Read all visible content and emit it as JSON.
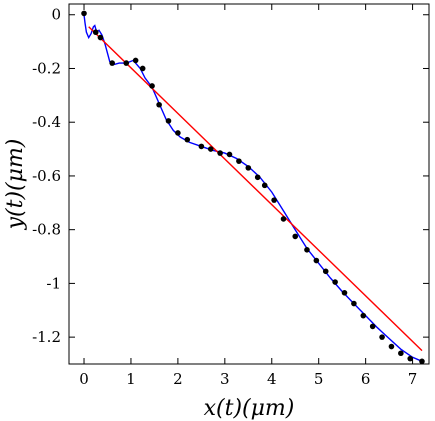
{
  "chart_data": {
    "type": "line",
    "title": "",
    "xlabel": "x(t)(μm)",
    "ylabel": "y(t)(μm)",
    "xlim": [
      -0.32,
      7.35
    ],
    "ylim": [
      -1.3,
      0.04
    ],
    "xticks": [
      0,
      1,
      2,
      3,
      4,
      5,
      6,
      7
    ],
    "xtick_labels": [
      "0",
      "1",
      "2",
      "3",
      "4",
      "5",
      "6",
      "7"
    ],
    "yticks": [
      0,
      -0.2,
      -0.4,
      -0.6,
      -0.8,
      -1,
      -1.2
    ],
    "ytick_labels": [
      "0",
      "-0.2",
      "-0.4",
      "-0.6",
      "-0.8",
      "-1",
      "-1.2"
    ],
    "grid": false,
    "legend": "none",
    "series": [
      {
        "color": "#0000ff",
        "style": "line",
        "x": [
          0.0,
          0.02,
          0.05,
          0.1,
          0.15,
          0.2,
          0.23,
          0.27,
          0.32,
          0.38,
          0.45,
          0.55,
          0.65,
          0.75,
          0.9,
          1.05,
          1.2,
          1.3,
          1.45,
          1.6,
          1.75,
          1.9,
          2.05,
          2.25,
          2.5,
          2.75,
          3.0,
          3.25,
          3.5,
          3.75,
          4.0,
          4.25,
          4.5,
          4.75,
          5.0,
          5.25,
          5.5,
          5.75,
          6.0,
          6.25,
          6.5,
          6.75,
          7.0,
          7.2
        ],
        "y": [
          0.0,
          -0.03,
          -0.065,
          -0.085,
          -0.07,
          -0.045,
          -0.04,
          -0.065,
          -0.058,
          -0.075,
          -0.11,
          -0.175,
          -0.185,
          -0.18,
          -0.18,
          -0.17,
          -0.2,
          -0.235,
          -0.27,
          -0.33,
          -0.39,
          -0.43,
          -0.455,
          -0.475,
          -0.49,
          -0.505,
          -0.515,
          -0.535,
          -0.565,
          -0.605,
          -0.66,
          -0.73,
          -0.8,
          -0.87,
          -0.925,
          -0.98,
          -1.03,
          -1.075,
          -1.12,
          -1.165,
          -1.205,
          -1.245,
          -1.275,
          -1.29
        ]
      },
      {
        "color": "#000000",
        "style": "markers",
        "x": [
          0.0,
          0.25,
          0.35,
          0.6,
          0.9,
          1.1,
          1.25,
          1.45,
          1.6,
          1.8,
          2.0,
          2.2,
          2.5,
          2.7,
          2.9,
          3.1,
          3.3,
          3.5,
          3.7,
          3.85,
          4.05,
          4.25,
          4.5,
          4.75,
          4.95,
          5.15,
          5.35,
          5.55,
          5.75,
          5.95,
          6.15,
          6.35,
          6.55,
          6.75,
          6.95,
          7.2
        ],
        "y": [
          0.005,
          -0.065,
          -0.085,
          -0.18,
          -0.18,
          -0.17,
          -0.2,
          -0.265,
          -0.335,
          -0.395,
          -0.44,
          -0.465,
          -0.49,
          -0.5,
          -0.515,
          -0.52,
          -0.545,
          -0.57,
          -0.605,
          -0.635,
          -0.69,
          -0.76,
          -0.825,
          -0.875,
          -0.915,
          -0.955,
          -0.995,
          -1.035,
          -1.075,
          -1.12,
          -1.16,
          -1.2,
          -1.235,
          -1.26,
          -1.28,
          -1.29
        ]
      },
      {
        "color": "#ff0000",
        "style": "line",
        "x": [
          0.1,
          7.2
        ],
        "y": [
          -0.045,
          -1.25
        ]
      }
    ]
  }
}
